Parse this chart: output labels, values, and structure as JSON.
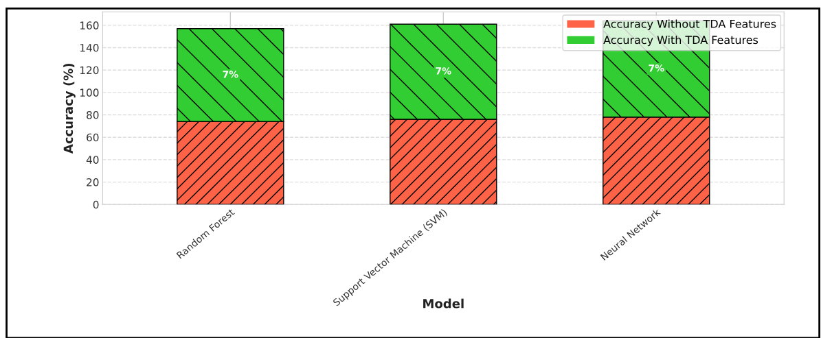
{
  "chart_data": {
    "type": "bar",
    "stacked": true,
    "xlabel": "Model",
    "ylabel": "Accuracy (%)",
    "categories": [
      "Random Forest",
      "Support Vector Machine (SVM)",
      "Neural Network"
    ],
    "series": [
      {
        "name": "Accuracy Without TDA Features",
        "color": "#ff6347",
        "values": [
          74,
          76,
          78
        ]
      },
      {
        "name": "Accuracy With TDA Features",
        "color": "#32cd32",
        "values": [
          83,
          85,
          86
        ]
      }
    ],
    "annotations": [
      "7%",
      "7%",
      "7%"
    ],
    "ylim": [
      0,
      172
    ],
    "yticks": [
      0,
      20,
      40,
      60,
      80,
      100,
      120,
      140,
      160
    ],
    "grid": true,
    "legend": "top right"
  }
}
